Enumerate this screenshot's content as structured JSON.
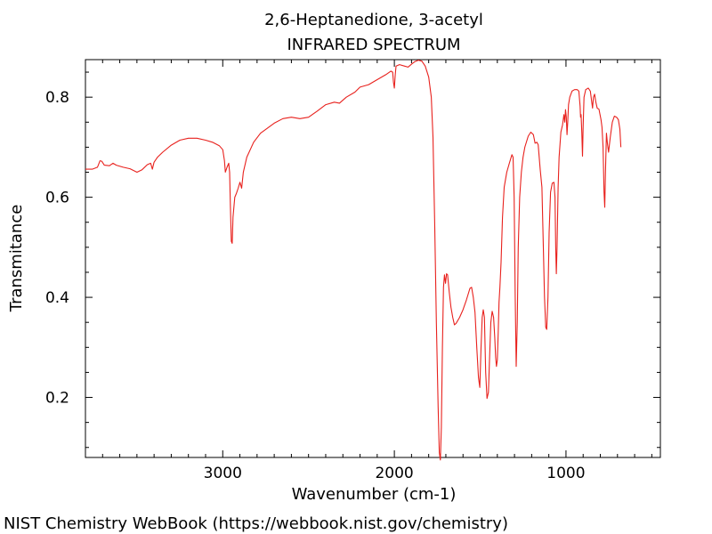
{
  "chart_data": {
    "type": "line",
    "title": "2,6-Heptanedione, 3-acetyl",
    "subtitle": "INFRARED SPECTRUM",
    "xlabel": "Wavenumber (cm-1)",
    "ylabel": "Transmitance",
    "xlim": [
      3800,
      450
    ],
    "ylim": [
      0.08,
      0.875
    ],
    "x_ticks": [
      3000,
      2000,
      1000
    ],
    "x_tick_labels": [
      "3000",
      "2000",
      "1000"
    ],
    "y_ticks": [
      0.2,
      0.4,
      0.6,
      0.8
    ],
    "y_tick_labels": [
      "0.2",
      "0.4",
      "0.6",
      "0.8"
    ],
    "grid": false,
    "line_color": "#e8211d",
    "series": [
      {
        "points": [
          [
            3800,
            0.656
          ],
          [
            3760,
            0.656
          ],
          [
            3730,
            0.66
          ],
          [
            3715,
            0.673
          ],
          [
            3705,
            0.672
          ],
          [
            3690,
            0.664
          ],
          [
            3660,
            0.663
          ],
          [
            3640,
            0.668
          ],
          [
            3620,
            0.664
          ],
          [
            3580,
            0.66
          ],
          [
            3540,
            0.657
          ],
          [
            3500,
            0.65
          ],
          [
            3470,
            0.655
          ],
          [
            3440,
            0.665
          ],
          [
            3420,
            0.668
          ],
          [
            3410,
            0.656
          ],
          [
            3400,
            0.67
          ],
          [
            3380,
            0.68
          ],
          [
            3350,
            0.69
          ],
          [
            3300,
            0.704
          ],
          [
            3250,
            0.714
          ],
          [
            3200,
            0.718
          ],
          [
            3150,
            0.718
          ],
          [
            3100,
            0.714
          ],
          [
            3060,
            0.71
          ],
          [
            3020,
            0.703
          ],
          [
            3000,
            0.695
          ],
          [
            2990,
            0.673
          ],
          [
            2985,
            0.65
          ],
          [
            2975,
            0.66
          ],
          [
            2965,
            0.668
          ],
          [
            2960,
            0.65
          ],
          [
            2955,
            0.58
          ],
          [
            2950,
            0.512
          ],
          [
            2945,
            0.508
          ],
          [
            2940,
            0.56
          ],
          [
            2930,
            0.6
          ],
          [
            2920,
            0.608
          ],
          [
            2910,
            0.618
          ],
          [
            2900,
            0.63
          ],
          [
            2890,
            0.618
          ],
          [
            2880,
            0.65
          ],
          [
            2860,
            0.68
          ],
          [
            2820,
            0.71
          ],
          [
            2780,
            0.728
          ],
          [
            2700,
            0.748
          ],
          [
            2650,
            0.757
          ],
          [
            2600,
            0.76
          ],
          [
            2550,
            0.757
          ],
          [
            2500,
            0.76
          ],
          [
            2450,
            0.772
          ],
          [
            2400,
            0.785
          ],
          [
            2350,
            0.79
          ],
          [
            2320,
            0.788
          ],
          [
            2280,
            0.8
          ],
          [
            2230,
            0.81
          ],
          [
            2200,
            0.82
          ],
          [
            2150,
            0.825
          ],
          [
            2100,
            0.835
          ],
          [
            2050,
            0.845
          ],
          [
            2020,
            0.852
          ],
          [
            2010,
            0.85
          ],
          [
            2005,
            0.83
          ],
          [
            2000,
            0.818
          ],
          [
            1995,
            0.845
          ],
          [
            1990,
            0.862
          ],
          [
            1970,
            0.865
          ],
          [
            1940,
            0.862
          ],
          [
            1920,
            0.86
          ],
          [
            1900,
            0.866
          ],
          [
            1880,
            0.871
          ],
          [
            1860,
            0.874
          ],
          [
            1840,
            0.872
          ],
          [
            1820,
            0.862
          ],
          [
            1800,
            0.84
          ],
          [
            1785,
            0.8
          ],
          [
            1775,
            0.72
          ],
          [
            1765,
            0.55
          ],
          [
            1755,
            0.35
          ],
          [
            1745,
            0.18
          ],
          [
            1738,
            0.09
          ],
          [
            1732,
            0.075
          ],
          [
            1726,
            0.14
          ],
          [
            1720,
            0.3
          ],
          [
            1714,
            0.42
          ],
          [
            1708,
            0.445
          ],
          [
            1702,
            0.428
          ],
          [
            1696,
            0.447
          ],
          [
            1690,
            0.445
          ],
          [
            1680,
            0.41
          ],
          [
            1670,
            0.38
          ],
          [
            1660,
            0.36
          ],
          [
            1650,
            0.345
          ],
          [
            1640,
            0.348
          ],
          [
            1620,
            0.36
          ],
          [
            1600,
            0.375
          ],
          [
            1580,
            0.395
          ],
          [
            1560,
            0.418
          ],
          [
            1550,
            0.42
          ],
          [
            1540,
            0.4
          ],
          [
            1530,
            0.37
          ],
          [
            1520,
            0.3
          ],
          [
            1510,
            0.24
          ],
          [
            1502,
            0.22
          ],
          [
            1495,
            0.3
          ],
          [
            1488,
            0.36
          ],
          [
            1482,
            0.375
          ],
          [
            1475,
            0.36
          ],
          [
            1468,
            0.25
          ],
          [
            1460,
            0.198
          ],
          [
            1452,
            0.21
          ],
          [
            1445,
            0.28
          ],
          [
            1438,
            0.35
          ],
          [
            1430,
            0.372
          ],
          [
            1422,
            0.36
          ],
          [
            1415,
            0.32
          ],
          [
            1410,
            0.28
          ],
          [
            1405,
            0.262
          ],
          [
            1400,
            0.275
          ],
          [
            1395,
            0.33
          ],
          [
            1390,
            0.39
          ],
          [
            1385,
            0.42
          ],
          [
            1378,
            0.47
          ],
          [
            1370,
            0.56
          ],
          [
            1360,
            0.62
          ],
          [
            1345,
            0.65
          ],
          [
            1330,
            0.668
          ],
          [
            1315,
            0.685
          ],
          [
            1308,
            0.68
          ],
          [
            1302,
            0.6
          ],
          [
            1296,
            0.4
          ],
          [
            1290,
            0.262
          ],
          [
            1284,
            0.35
          ],
          [
            1278,
            0.5
          ],
          [
            1270,
            0.6
          ],
          [
            1260,
            0.65
          ],
          [
            1250,
            0.68
          ],
          [
            1240,
            0.7
          ],
          [
            1220,
            0.722
          ],
          [
            1205,
            0.73
          ],
          [
            1190,
            0.725
          ],
          [
            1180,
            0.708
          ],
          [
            1170,
            0.71
          ],
          [
            1162,
            0.705
          ],
          [
            1150,
            0.655
          ],
          [
            1140,
            0.62
          ],
          [
            1132,
            0.5
          ],
          [
            1125,
            0.4
          ],
          [
            1118,
            0.34
          ],
          [
            1112,
            0.336
          ],
          [
            1105,
            0.4
          ],
          [
            1098,
            0.53
          ],
          [
            1090,
            0.61
          ],
          [
            1080,
            0.628
          ],
          [
            1070,
            0.63
          ],
          [
            1064,
            0.6
          ],
          [
            1060,
            0.5
          ],
          [
            1056,
            0.447
          ],
          [
            1052,
            0.5
          ],
          [
            1046,
            0.62
          ],
          [
            1040,
            0.68
          ],
          [
            1030,
            0.73
          ],
          [
            1020,
            0.745
          ],
          [
            1012,
            0.765
          ],
          [
            1007,
            0.75
          ],
          [
            1003,
            0.775
          ],
          [
            998,
            0.76
          ],
          [
            994,
            0.725
          ],
          [
            990,
            0.75
          ],
          [
            985,
            0.785
          ],
          [
            978,
            0.8
          ],
          [
            965,
            0.812
          ],
          [
            950,
            0.815
          ],
          [
            935,
            0.815
          ],
          [
            925,
            0.812
          ],
          [
            918,
            0.782
          ],
          [
            915,
            0.76
          ],
          [
            912,
            0.765
          ],
          [
            908,
            0.73
          ],
          [
            904,
            0.682
          ],
          [
            900,
            0.74
          ],
          [
            895,
            0.8
          ],
          [
            885,
            0.815
          ],
          [
            870,
            0.818
          ],
          [
            858,
            0.812
          ],
          [
            850,
            0.79
          ],
          [
            845,
            0.778
          ],
          [
            840,
            0.8
          ],
          [
            833,
            0.806
          ],
          [
            826,
            0.79
          ],
          [
            818,
            0.778
          ],
          [
            808,
            0.776
          ],
          [
            796,
            0.755
          ],
          [
            790,
            0.74
          ],
          [
            784,
            0.7
          ],
          [
            778,
            0.61
          ],
          [
            774,
            0.58
          ],
          [
            770,
            0.65
          ],
          [
            764,
            0.728
          ],
          [
            758,
            0.706
          ],
          [
            752,
            0.69
          ],
          [
            742,
            0.72
          ],
          [
            730,
            0.75
          ],
          [
            718,
            0.762
          ],
          [
            705,
            0.76
          ],
          [
            695,
            0.755
          ],
          [
            690,
            0.745
          ],
          [
            686,
            0.736
          ],
          [
            680,
            0.7
          ]
        ]
      }
    ]
  },
  "footer": "NIST Chemistry WebBook (https://webbook.nist.gov/chemistry)"
}
